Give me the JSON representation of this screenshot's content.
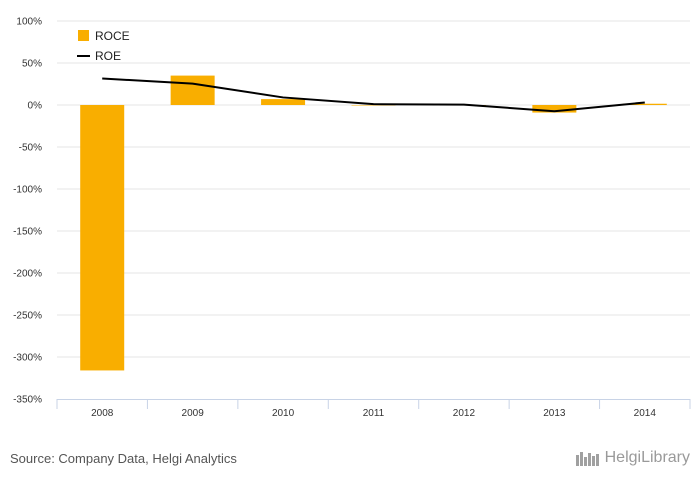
{
  "chart_data": {
    "type": "bar",
    "categories": [
      "2008",
      "2009",
      "2010",
      "2011",
      "2012",
      "2013",
      "2014"
    ],
    "series": [
      {
        "name": "ROCE",
        "type": "bar",
        "color": "#F9AE00",
        "values": [
          -316.0,
          35.0,
          7.0,
          0.0,
          0.0,
          -9.0,
          1.5
        ]
      },
      {
        "name": "ROE",
        "type": "line",
        "color": "#000000",
        "values": [
          31.5,
          25.5,
          9.0,
          1.0,
          0.5,
          -7.5,
          3.0
        ]
      }
    ],
    "y_ticks": [
      "100%",
      "50%",
      "0%",
      "-50%",
      "-100%",
      "-150%",
      "-200%",
      "-250%",
      "-300%",
      "-350%"
    ],
    "ylim": [
      -350,
      100
    ],
    "y_unit": "%",
    "grid": true,
    "legend_position": "top-left"
  },
  "footer": {
    "source": "Source: Company Data, Helgi Analytics",
    "logo_text": "HelgiLibrary"
  }
}
